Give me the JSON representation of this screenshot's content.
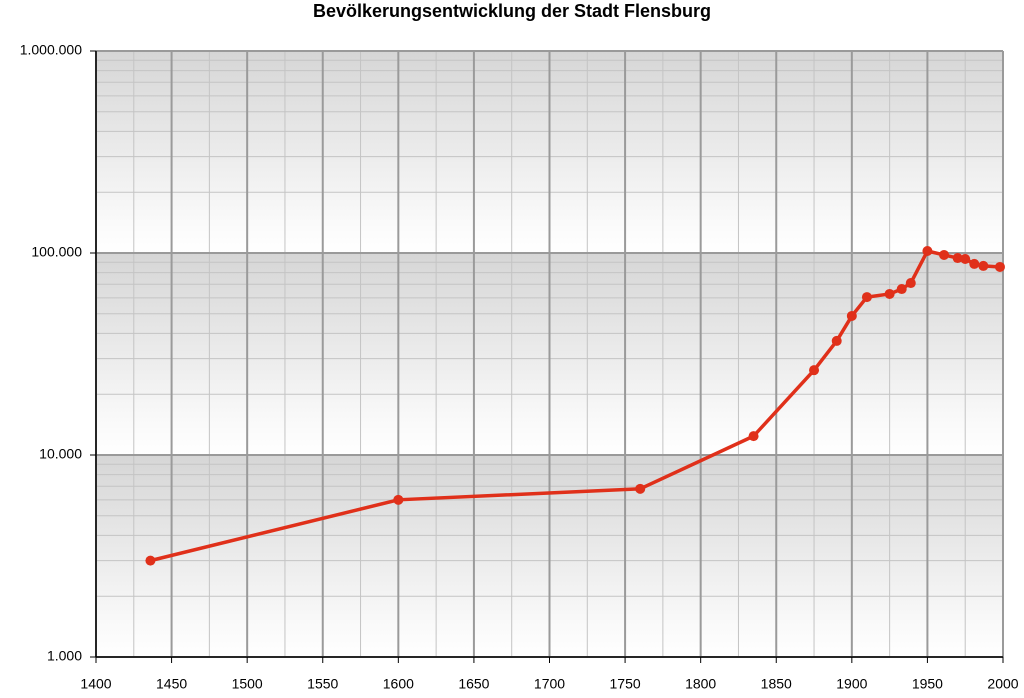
{
  "chart_data": {
    "type": "line",
    "title": "Bevölkerungsentwicklung der Stadt Flensburg",
    "x": [
      1436,
      1600,
      1760,
      1835,
      1875,
      1890,
      1900,
      1910,
      1925,
      1933,
      1939,
      1950,
      1961,
      1970,
      1975,
      1981,
      1987,
      1998
    ],
    "series": [
      {
        "color": "#e0301a",
        "values": [
          3000,
          6000,
          6800,
          12400,
          26300,
          36700,
          48800,
          60500,
          62700,
          66300,
          71000,
          102300,
          97800,
          94400,
          93400,
          88300,
          86300,
          85300
        ]
      }
    ],
    "xlim": [
      1400,
      2000
    ],
    "xticks": [
      1400,
      1450,
      1500,
      1550,
      1600,
      1650,
      1700,
      1750,
      1800,
      1850,
      1900,
      1950,
      2000
    ],
    "ylim": [
      1000,
      1000000
    ],
    "log_y": true,
    "yticks": [
      {
        "value": 1000,
        "label": "1.000"
      },
      {
        "value": 10000,
        "label": "10.000"
      },
      {
        "value": 100000,
        "label": "100.000"
      },
      {
        "value": 1000000,
        "label": "1.000.000"
      }
    ],
    "grid": true
  }
}
